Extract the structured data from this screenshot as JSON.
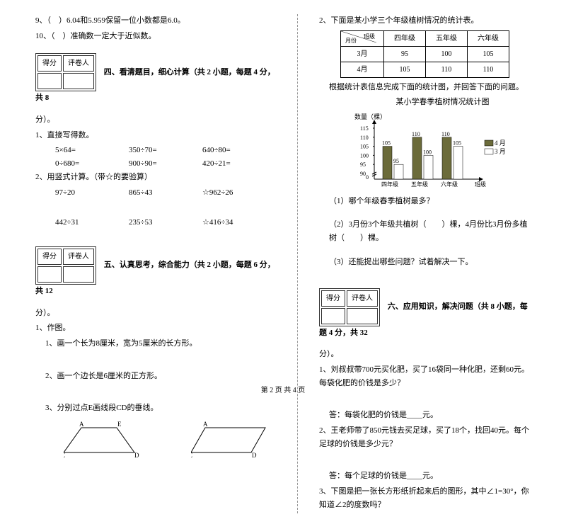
{
  "q9": "9、（　）6.04和5.959保留一位小数都是6.0。",
  "q10": "10、（　）准确数一定大于近似数。",
  "scoreLabels": {
    "score": "得分",
    "grader": "评卷人"
  },
  "sec4": {
    "title": "四、看清题目，细心计算（共 2 小题，每题 4 分，共 8",
    "tail": "分）。"
  },
  "s4q1": "1、直接写得数。",
  "s4r1": {
    "a": "5×64=",
    "b": "350÷70=",
    "c": "640÷80="
  },
  "s4r2": {
    "a": "0÷680=",
    "b": "900÷90=",
    "c": "420÷21="
  },
  "s4q2": "2、用竖式计算。（带☆的要验算）",
  "s4r3": {
    "a": "97÷20",
    "b": "865÷43",
    "c": "☆962÷26"
  },
  "s4r4": {
    "a": "442÷31",
    "b": "235÷53",
    "c": "☆416÷34"
  },
  "sec5": {
    "title": "五、认真思考，综合能力（共 2 小题，每题 6 分，共 12",
    "tail": "分）。"
  },
  "s5q1": "1、作图。",
  "s5q1a": "1、画一个长为8厘米，宽为5厘米的长方形。",
  "s5q1b": "2、画一个边长是6厘米的正方形。",
  "s5q1c": "3、分别过点E画线段CD的垂线。",
  "shapeLabels": {
    "A": "A",
    "E": "E",
    "C": "C",
    "D": "D"
  },
  "s5q2": "2、下面是某小学三个年级植树情况的统计表。",
  "table": {
    "headers": [
      "月份\\班级",
      "四年级",
      "五年级",
      "六年级"
    ],
    "rows": [
      [
        "3月",
        "95",
        "100",
        "105"
      ],
      [
        "4月",
        "105",
        "110",
        "110"
      ]
    ]
  },
  "tableNote": "根据统计表信息完成下面的统计图，并回答下面的问题。",
  "chartTitle": "某小学春季植树情况统计图",
  "chartYLabel": "数量（棵）",
  "chartXLabel": "班级",
  "chart": {
    "yticks": [
      "115",
      "110",
      "105",
      "100",
      "95",
      "90",
      "0"
    ],
    "cats": [
      "四年级",
      "五年级",
      "六年级"
    ],
    "bars": [
      {
        "v1": 105,
        "v2": 95,
        "l1": "105",
        "l2": "95"
      },
      {
        "v1": 110,
        "v2": 100,
        "l1": "110",
        "l2": "100"
      },
      {
        "v1": 110,
        "v2": 105,
        "l1": "110",
        "l2": "105"
      }
    ],
    "legend": {
      "a": "4 月",
      "b": "3 月"
    },
    "colors": {
      "bar1": "#6b6b3a",
      "bar2": "#ffffff",
      "axis": "#000"
    }
  },
  "s5q2a": "（1）哪个年级春季植树最多？",
  "s5q2b": "（2）3月份3个年级共植树（　　）棵，4月份比3月份多植树（　　）棵。",
  "s5q2c": "（3）还能提出哪些问题？试着解决一下。",
  "sec6": {
    "title": "六、应用知识，解决问题（共 8 小题，每题 4 分，共 32",
    "tail": "分）。"
  },
  "s6q1": "1、刘叔叔带700元买化肥，买了16袋同一种化肥，还剩60元。每袋化肥的价钱是多少？",
  "s6a1": "答：每袋化肥的价钱是____元。",
  "s6q2": "2、王老师带了850元钱去买足球，买了18个，找回40元。每个足球的价钱是多少元？",
  "s6a2": "答：每个足球的价钱是____元。",
  "s6q3": "3、下图是把一张长方形纸折起来后的图形，其中∠1=30°，你知道∠2的度数吗？",
  "footer": "第 2 页 共 4 页"
}
